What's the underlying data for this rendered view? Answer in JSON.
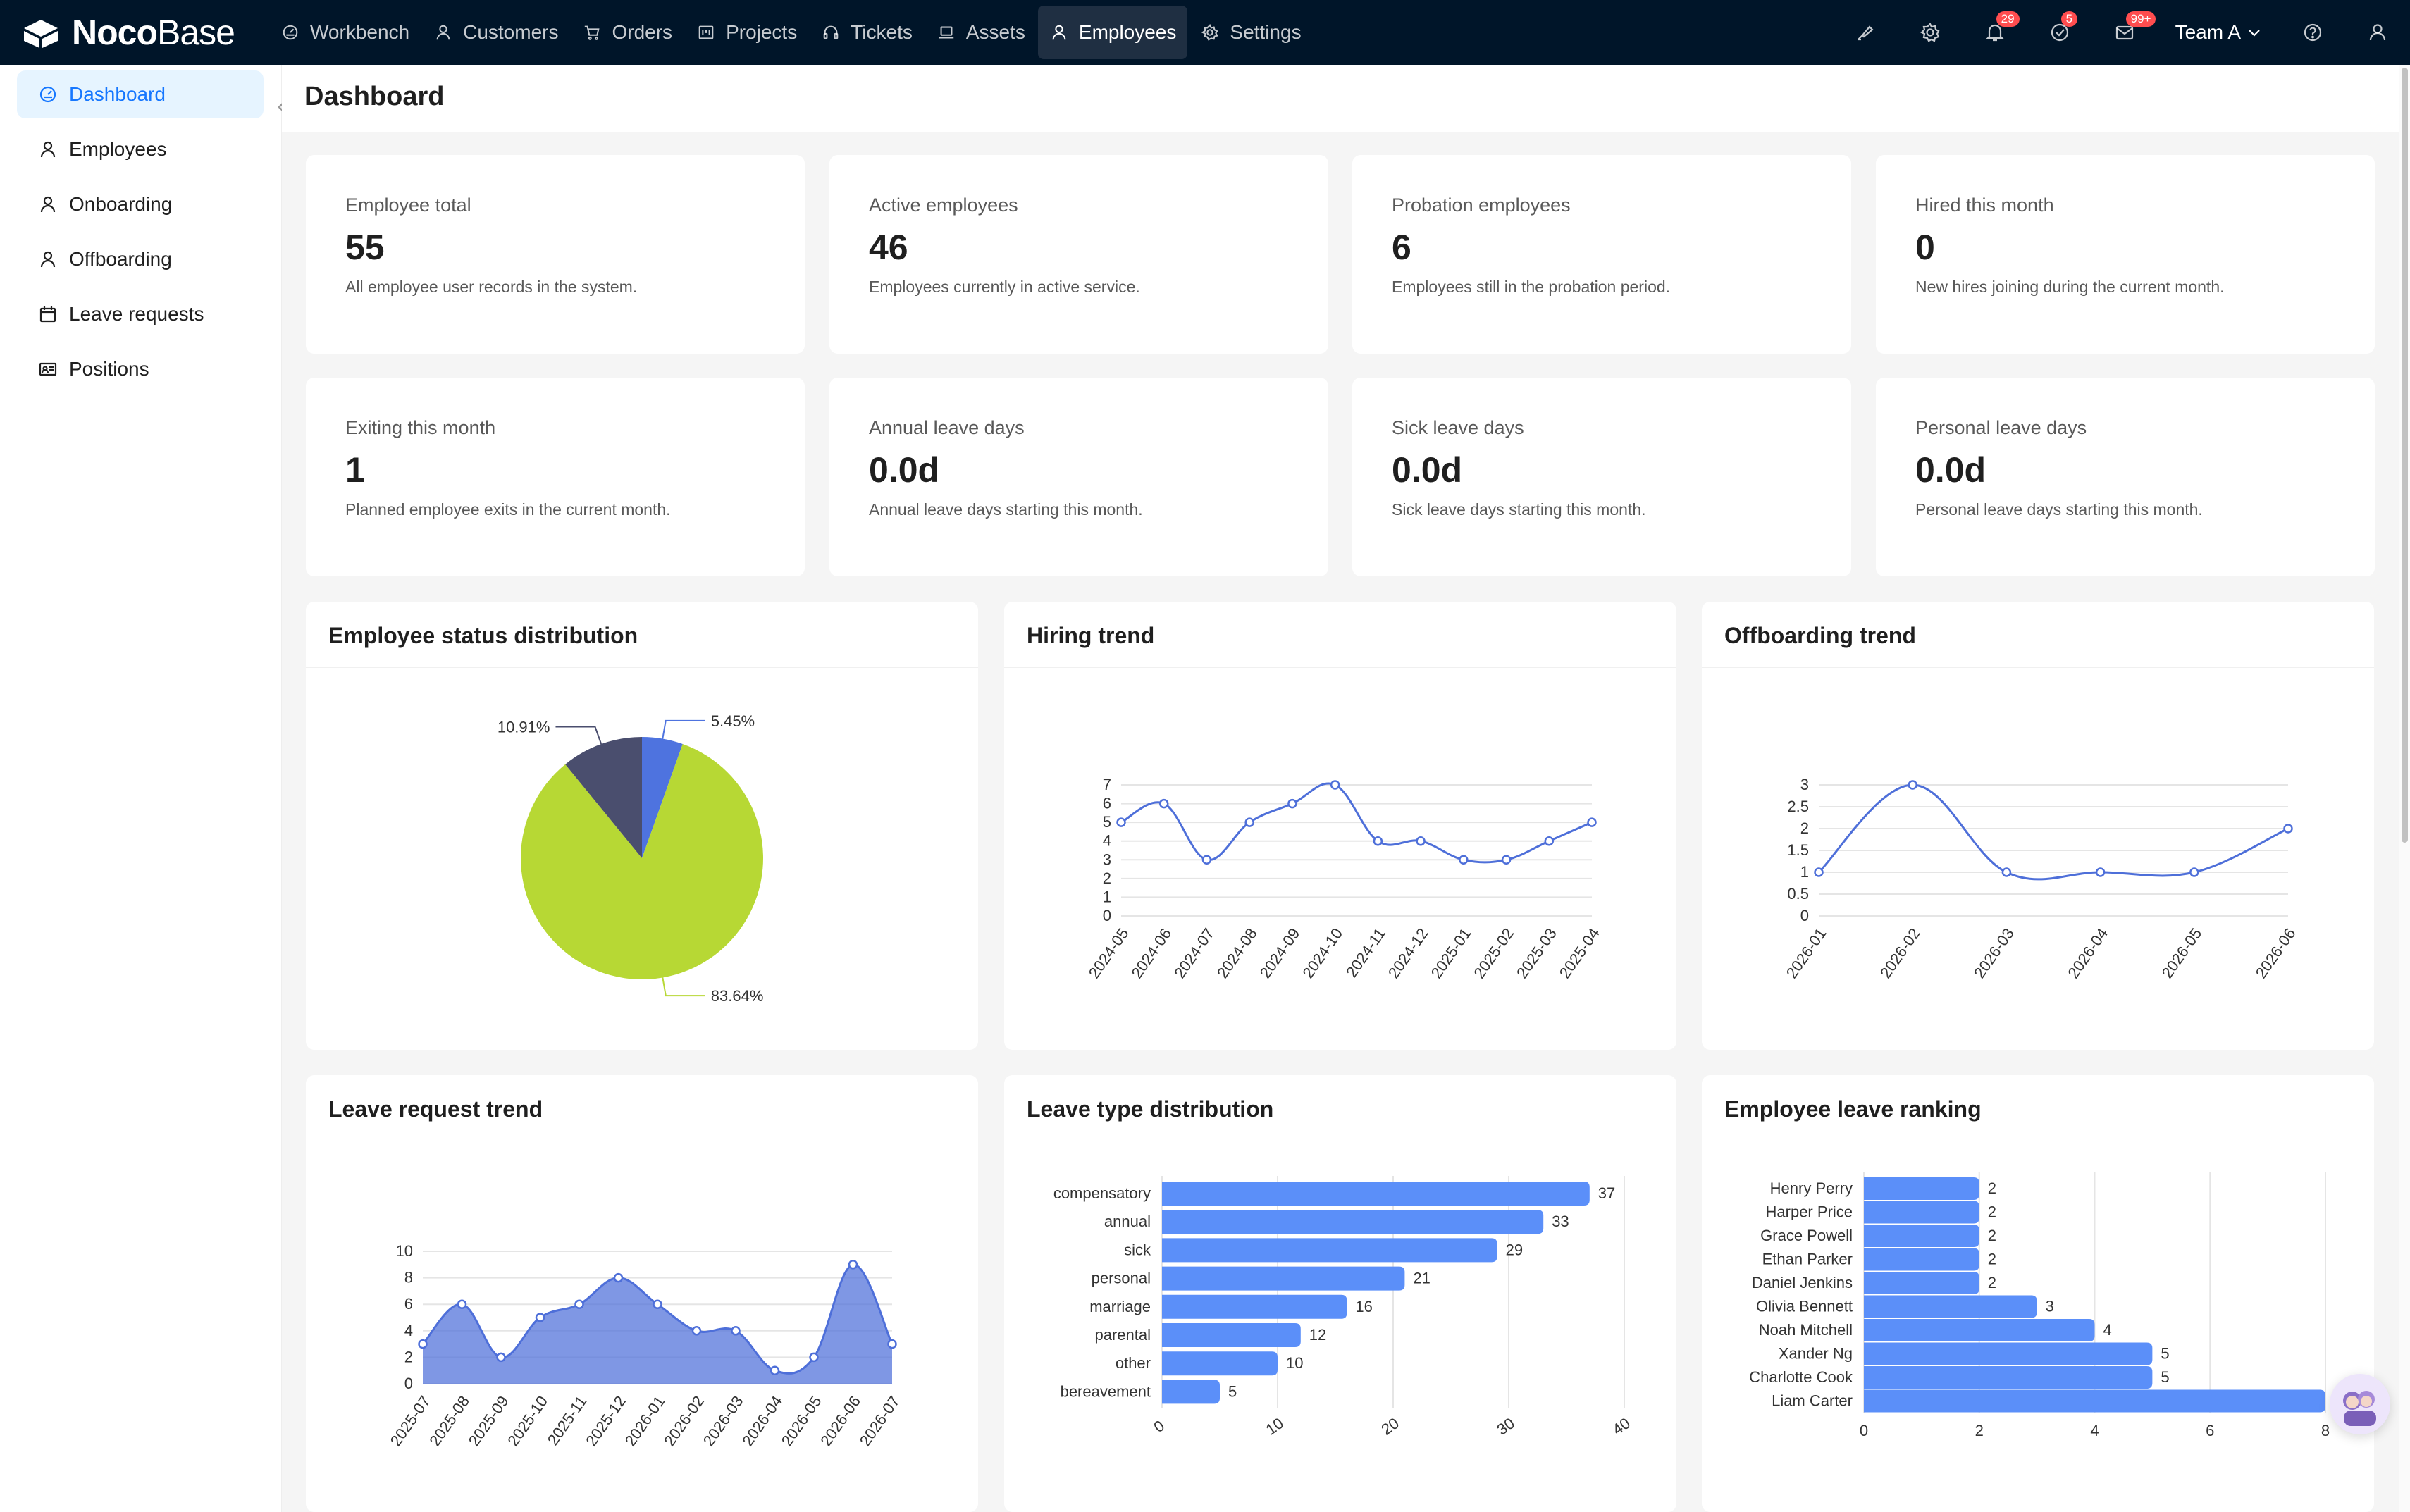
{
  "app": {
    "logo_bold": "Noco",
    "logo_light": "Base",
    "nav": [
      {
        "label": "Workbench",
        "icon": "dashboard-icon"
      },
      {
        "label": "Customers",
        "icon": "user-icon"
      },
      {
        "label": "Orders",
        "icon": "cart-icon"
      },
      {
        "label": "Projects",
        "icon": "project-icon"
      },
      {
        "label": "Tickets",
        "icon": "headset-icon"
      },
      {
        "label": "Assets",
        "icon": "laptop-icon"
      },
      {
        "label": "Employees",
        "icon": "user-icon"
      },
      {
        "label": "Settings",
        "icon": "gear-icon"
      }
    ],
    "active_nav": "Employees",
    "badges": {
      "notifications": "29",
      "tasks": "5",
      "messages": "99+"
    },
    "team": "Team A"
  },
  "sidebar": {
    "items": [
      {
        "label": "Dashboard",
        "icon": "dashboard-icon"
      },
      {
        "label": "Employees",
        "icon": "user-icon"
      },
      {
        "label": "Onboarding",
        "icon": "user-icon"
      },
      {
        "label": "Offboarding",
        "icon": "user-icon"
      },
      {
        "label": "Leave requests",
        "icon": "calendar-icon"
      },
      {
        "label": "Positions",
        "icon": "id-card-icon"
      }
    ]
  },
  "page": {
    "title": "Dashboard"
  },
  "stats": [
    {
      "label": "Employee total",
      "value": "55",
      "desc": "All employee user records in the system."
    },
    {
      "label": "Active employees",
      "value": "46",
      "desc": "Employees currently in active service."
    },
    {
      "label": "Probation employees",
      "value": "6",
      "desc": "Employees still in the probation period."
    },
    {
      "label": "Hired this month",
      "value": "0",
      "desc": "New hires joining during the current month."
    },
    {
      "label": "Exiting this month",
      "value": "1",
      "desc": "Planned employee exits in the current month."
    },
    {
      "label": "Annual leave days",
      "value": "0.0d",
      "desc": "Annual leave days starting this month."
    },
    {
      "label": "Sick leave days",
      "value": "0.0d",
      "desc": "Sick leave days starting this month."
    },
    {
      "label": "Personal leave days",
      "value": "0.0d",
      "desc": "Personal leave days starting this month."
    }
  ],
  "chart_titles": {
    "status": "Employee status distribution",
    "hiring": "Hiring trend",
    "offboarding": "Offboarding trend",
    "leave_trend": "Leave request trend",
    "leave_type": "Leave type distribution",
    "ranking": "Employee leave ranking"
  },
  "chart_data": [
    {
      "type": "pie",
      "title": "Employee status distribution",
      "slices": [
        {
          "value": 5.45,
          "label": "5.45%",
          "color": "#4e73df"
        },
        {
          "value": 83.64,
          "label": "83.64%",
          "color": "#b7d834"
        },
        {
          "value": 10.91,
          "label": "10.91%",
          "color": "#4a4e6e"
        }
      ]
    },
    {
      "type": "line",
      "title": "Hiring trend",
      "x": [
        "2024-05",
        "2024-06",
        "2024-07",
        "2024-08",
        "2024-09",
        "2024-10",
        "2024-11",
        "2024-12",
        "2025-01",
        "2025-02",
        "2025-03",
        "2025-04"
      ],
      "values": [
        5,
        6,
        3,
        5,
        6,
        7,
        4,
        4,
        3,
        3,
        4,
        5
      ],
      "yticks": [
        0,
        1,
        2,
        3,
        4,
        5,
        6,
        7
      ],
      "ylim": [
        0,
        7
      ],
      "color": "#4e6fd9",
      "grid": true
    },
    {
      "type": "line",
      "title": "Offboarding trend",
      "x": [
        "2026-01",
        "2026-02",
        "2026-03",
        "2026-04",
        "2026-05",
        "2026-06"
      ],
      "values": [
        1,
        3,
        1,
        1,
        1,
        2
      ],
      "yticks": [
        "0",
        "0.5",
        "1",
        "1.5",
        "2",
        "2.5",
        "3"
      ],
      "ylim": [
        0,
        3
      ],
      "color": "#4e6fd9",
      "grid": true
    },
    {
      "type": "area",
      "title": "Leave request trend",
      "x": [
        "2025-07",
        "2025-08",
        "2025-09",
        "2025-10",
        "2025-11",
        "2025-12",
        "2026-01",
        "2026-02",
        "2026-03",
        "2026-04",
        "2026-05",
        "2026-06",
        "2026-07"
      ],
      "values": [
        3,
        6,
        2,
        5,
        6,
        8,
        6,
        4,
        4,
        1,
        2,
        9,
        3
      ],
      "yticks": [
        0,
        2,
        4,
        6,
        8,
        10
      ],
      "ylim": [
        0,
        10
      ],
      "color": "#4e6fd9",
      "grid": true
    },
    {
      "type": "bar",
      "orientation": "horizontal",
      "title": "Leave type distribution",
      "categories": [
        "compensatory",
        "annual",
        "sick",
        "personal",
        "marriage",
        "parental",
        "other",
        "bereavement"
      ],
      "values": [
        37,
        33,
        29,
        21,
        16,
        12,
        10,
        5
      ],
      "xticks": [
        0,
        10,
        20,
        30,
        40
      ],
      "xlim": [
        0,
        40
      ],
      "color": "#5b8ff9"
    },
    {
      "type": "bar",
      "orientation": "horizontal",
      "title": "Employee leave ranking",
      "categories": [
        "Henry Perry",
        "Harper Price",
        "Grace Powell",
        "Ethan Parker",
        "Daniel Jenkins",
        "Olivia Bennett",
        "Noah Mitchell",
        "Xander Ng",
        "Charlotte Cook",
        "Liam Carter"
      ],
      "values": [
        2,
        2,
        2,
        2,
        2,
        3,
        4,
        5,
        5,
        8
      ],
      "value_labels": [
        "2",
        "2",
        "2",
        "2",
        "2",
        "3",
        "4",
        "5",
        "5",
        ""
      ],
      "xticks": [
        "0",
        "2",
        "4",
        "6",
        "8"
      ],
      "xlim": [
        0,
        8
      ],
      "color": "#5b8ff9"
    }
  ]
}
